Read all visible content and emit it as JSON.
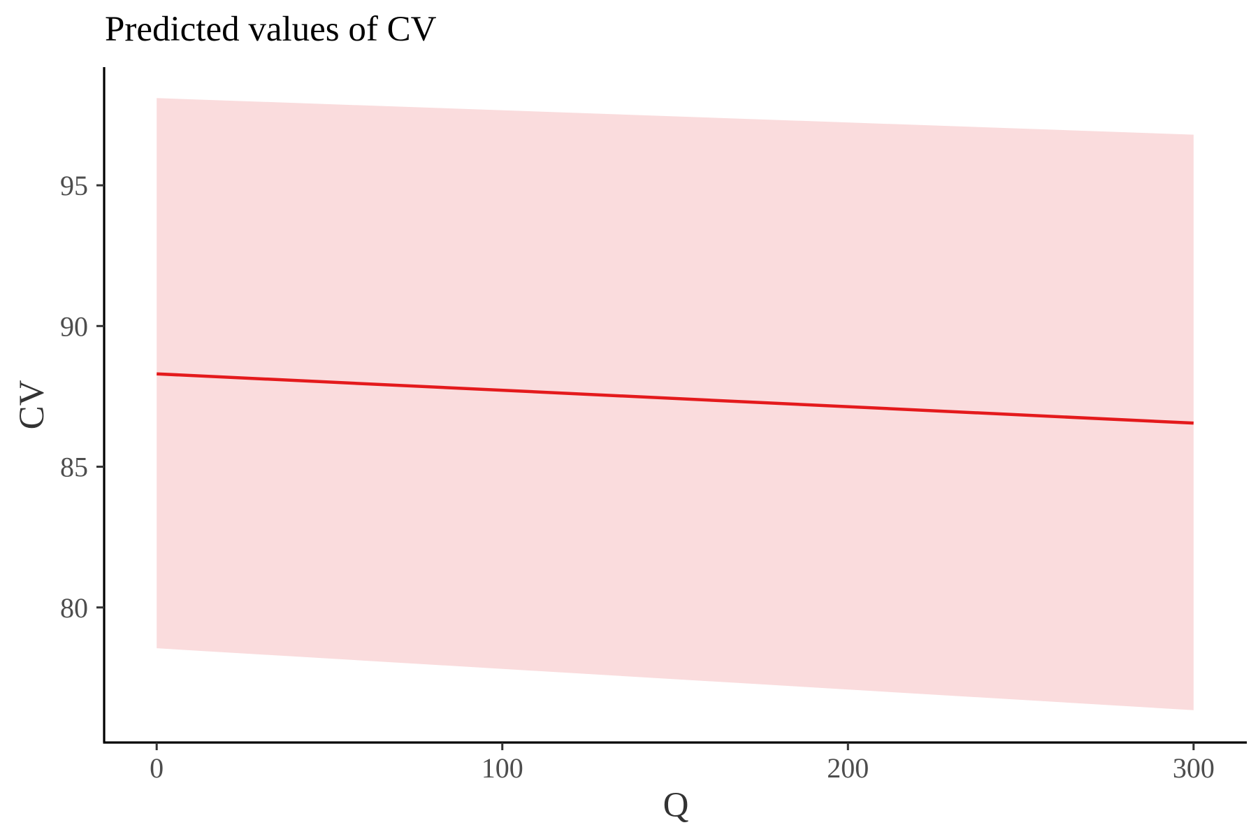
{
  "chart_data": {
    "type": "line",
    "title": "Predicted values of CV",
    "xlabel": "Q",
    "ylabel": "CV",
    "x_ticks": [
      0,
      100,
      200,
      300
    ],
    "y_ticks": [
      80,
      85,
      90,
      95
    ],
    "xlim": [
      -15,
      315
    ],
    "ylim": [
      75.2,
      99.2
    ],
    "grid": false,
    "legend": "none",
    "series": [
      {
        "color": "#e41a1c",
        "band_color": "#fadcdd",
        "x": [
          0,
          300
        ],
        "y": [
          88.3,
          86.55
        ],
        "ci_low": [
          78.55,
          76.35
        ],
        "ci_high": [
          98.1,
          96.8
        ]
      }
    ]
  }
}
